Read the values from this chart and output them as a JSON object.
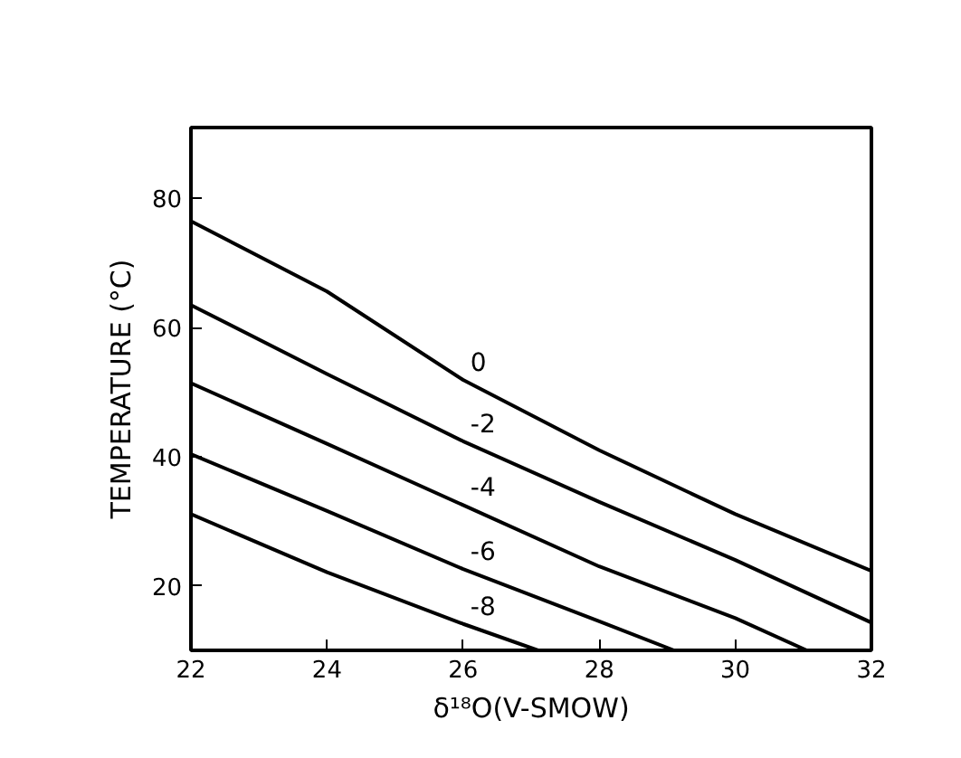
{
  "chart_data": {
    "type": "line",
    "xlabel": "δ¹⁸O(V-SMOW)",
    "ylabel": "TEMPERATURE (°C)",
    "xlim": [
      22,
      32
    ],
    "ylim": [
      10,
      91
    ],
    "xticks": [
      22,
      24,
      26,
      28,
      30,
      32
    ],
    "yticks": [
      20,
      40,
      60,
      80
    ],
    "grid": false,
    "marker": "none",
    "line_style": "solid",
    "series": [
      {
        "name": "0",
        "color": "#000000",
        "x": [
          22,
          24,
          26,
          28,
          30,
          32
        ],
        "values": [
          76.5,
          65.6,
          51.9,
          41,
          31.1,
          22.3
        ]
      },
      {
        "name": "-2",
        "color": "#000000",
        "x": [
          22,
          24,
          26,
          28,
          30,
          32
        ],
        "values": [
          63.5,
          52.8,
          42.4,
          33,
          24,
          14.3
        ]
      },
      {
        "name": "-4",
        "color": "#000000",
        "x": [
          22,
          24,
          26,
          28,
          30,
          31.05
        ],
        "values": [
          51.4,
          42,
          32.5,
          23,
          15,
          10
        ]
      },
      {
        "name": "-6",
        "color": "#000000",
        "x": [
          22,
          24,
          26,
          28,
          29.1
        ],
        "values": [
          40.4,
          31.6,
          22.6,
          14.5,
          10
        ]
      },
      {
        "name": "-8",
        "color": "#000000",
        "x": [
          22,
          24,
          26,
          27.1
        ],
        "values": [
          31.1,
          22.1,
          14.1,
          10
        ]
      }
    ]
  }
}
